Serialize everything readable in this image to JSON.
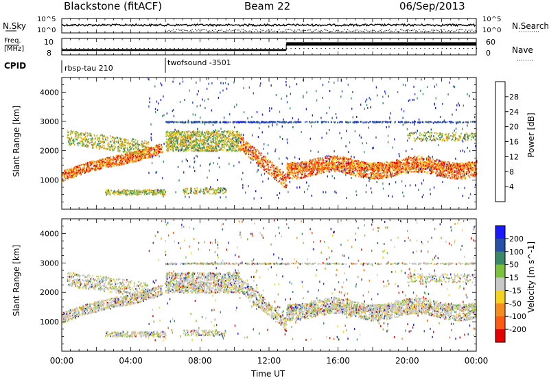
{
  "header": {
    "station": "Blackstone (fitACF)",
    "beam": "Beam 22",
    "date": "06/Sep/2013"
  },
  "top_panels": {
    "nsky_label": "N.Sky",
    "nsearch_label": "N.Search",
    "nsky_ticks": [
      "10^5",
      "10^0"
    ],
    "nsky_right_ticks": [
      "10^5",
      "10^0"
    ],
    "freq_label_1": "Freq.",
    "freq_label_2": "[MHz]",
    "freq_ticks": [
      "10",
      "8"
    ],
    "nave_label": "Nave",
    "nave_ticks": [
      "60",
      "0"
    ],
    "cpid_label": "CPID",
    "cpid_segments": [
      "rbsp-tau 210",
      "twofsound -3501"
    ]
  },
  "chart_data": [
    {
      "type": "heatmap",
      "title": "",
      "xlabel": "",
      "ylabel": "Slant Range [km]",
      "xlim_hours": [
        0,
        24
      ],
      "ylim": [
        0,
        4500
      ],
      "yticks": [
        1000,
        2000,
        3000,
        4000
      ],
      "colorbar_label": "Power [dB]",
      "colorbar_ticks": [
        4,
        8,
        12,
        16,
        20,
        24,
        28
      ],
      "colors": [
        "#1a1aff",
        "#2850a8",
        "#3a8a6a",
        "#7cc23c",
        "#f5d21e",
        "#f58c1e",
        "#ff5a14",
        "#e60000"
      ],
      "backscatter_bands": [
        {
          "t0": 0,
          "t1": 6,
          "r0": 900,
          "r1": 2300,
          "level": "high"
        },
        {
          "t0": 6,
          "t1": 11,
          "r0": 1800,
          "r1": 3000,
          "level": "mid"
        },
        {
          "t0": 11,
          "t1": 13,
          "r0": 700,
          "r1": 1300,
          "level": "high"
        },
        {
          "t0": 13,
          "t1": 24,
          "r0": 1100,
          "r1": 1800,
          "level": "high"
        },
        {
          "t0": 2.5,
          "t1": 9.5,
          "r0": 500,
          "r1": 800,
          "level": "mid"
        }
      ]
    },
    {
      "type": "heatmap",
      "title": "",
      "xlabel": "Time UT",
      "ylabel": "Slant Range [km]",
      "xlim_hours": [
        0,
        24
      ],
      "ylim": [
        0,
        4500
      ],
      "yticks": [
        1000,
        2000,
        3000,
        4000
      ],
      "colorbar_label": "Velocity [m s^-1]",
      "colorbar_ticks": [
        200,
        100,
        50,
        15,
        -15,
        -50,
        -100,
        -200
      ],
      "colors": [
        "#1a1aff",
        "#2850a8",
        "#3a8a6a",
        "#7cc23c",
        "#c8c8c8",
        "#f5d21e",
        "#f58c1e",
        "#ff5a14",
        "#e60000"
      ],
      "xticks": [
        "00:00",
        "04:00",
        "08:00",
        "12:00",
        "16:00",
        "20:00",
        "00:00"
      ]
    }
  ]
}
